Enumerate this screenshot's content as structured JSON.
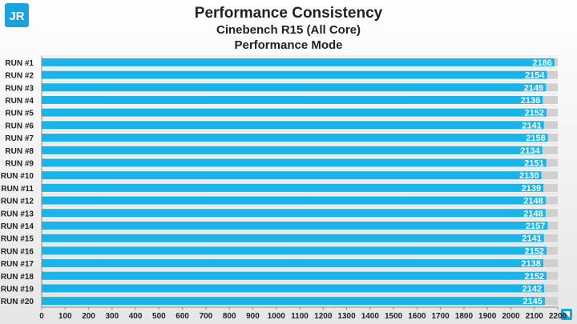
{
  "logo": {
    "text": "JR"
  },
  "chart_data": {
    "type": "bar",
    "orientation": "horizontal",
    "title": "Performance Consistency",
    "subtitle": "Cinebench R15 (All Core)",
    "subtitle2": "Performance Mode",
    "categories": [
      "RUN #1",
      "RUN #2",
      "RUN #3",
      "RUN #4",
      "RUN #5",
      "RUN #6",
      "RUN #7",
      "RUN #8",
      "RUN #9",
      "RUN #10",
      "RUN #11",
      "RUN #12",
      "RUN #13",
      "RUN #14",
      "RUN #15",
      "RUN #16",
      "RUN #17",
      "RUN #18",
      "RUN #19",
      "RUN #20"
    ],
    "values": [
      2186,
      2154,
      2149,
      2136,
      2152,
      2141,
      2158,
      2134,
      2151,
      2130,
      2139,
      2148,
      2148,
      2157,
      2141,
      2152,
      2138,
      2152,
      2142,
      2145
    ],
    "xlim": [
      0,
      2200
    ],
    "xticks": [
      0,
      100,
      200,
      300,
      400,
      500,
      600,
      700,
      800,
      900,
      1000,
      1100,
      1200,
      1300,
      1400,
      1500,
      1600,
      1700,
      1800,
      1900,
      2000,
      2100,
      2200
    ],
    "grid": true,
    "bar_color": "#1ab4e8",
    "label_color": "#ffffff",
    "track_color": "#d0d0d0"
  }
}
